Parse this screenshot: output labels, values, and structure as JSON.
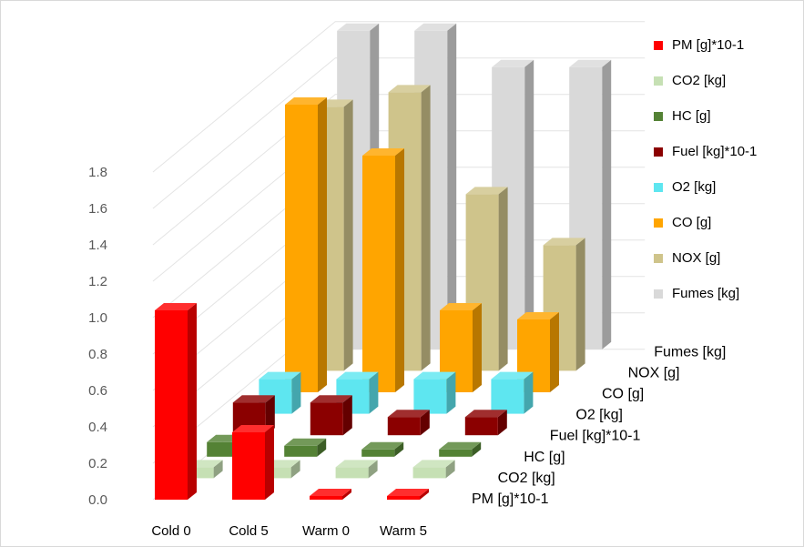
{
  "chart_data": {
    "type": "bar",
    "subtype": "3d-column",
    "categories": [
      "Cold 0",
      "Cold 5",
      "Warm 0",
      "Warm 5"
    ],
    "yticks": [
      "0.0",
      "0.2",
      "0.4",
      "0.6",
      "0.8",
      "1.0",
      "1.2",
      "1.4",
      "1.6",
      "1.8"
    ],
    "ylim": [
      0,
      1.8
    ],
    "grid": true,
    "legend_position": "right",
    "series": [
      {
        "name": "PM [g]*10-1",
        "color": "#ff0000",
        "values": [
          1.04,
          0.37,
          0.02,
          0.02
        ]
      },
      {
        "name": "CO2 [kg]",
        "color": "#c6e0b4",
        "values": [
          0.06,
          0.06,
          0.06,
          0.06
        ]
      },
      {
        "name": "HC [g]",
        "color": "#548235",
        "values": [
          0.08,
          0.06,
          0.04,
          0.04
        ]
      },
      {
        "name": "Fuel [kg]*10-1",
        "color": "#8b0000",
        "values": [
          0.18,
          0.18,
          0.1,
          0.1
        ]
      },
      {
        "name": "O2 [kg]",
        "color": "#5ee6f0",
        "values": [
          0.19,
          0.19,
          0.19,
          0.19
        ]
      },
      {
        "name": "CO [g]",
        "color": "#ffa500",
        "values": [
          1.58,
          1.3,
          0.45,
          0.4
        ]
      },
      {
        "name": "NOX [g]",
        "color": "#cfc48b",
        "values": [
          1.45,
          1.53,
          0.97,
          0.69
        ]
      },
      {
        "name": "Fumes [kg]",
        "color": "#d9d9d9",
        "values": [
          1.75,
          1.75,
          1.55,
          1.55
        ]
      }
    ]
  }
}
